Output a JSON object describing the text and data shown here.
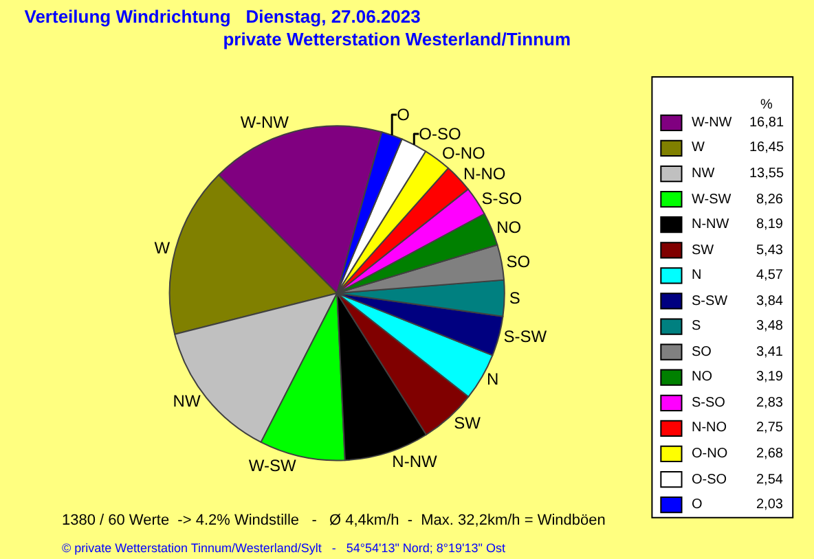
{
  "chart_data": {
    "type": "pie",
    "title": "Verteilung Windrichtung   Dienstag, 27.06.2023",
    "subtitle": "private Wetterstation Westerland/Tinnum",
    "legend_title": "%",
    "legend": "right",
    "categories": [
      "W-NW",
      "W",
      "NW",
      "W-SW",
      "N-NW",
      "SW",
      "N",
      "S-SW",
      "S",
      "SO",
      "NO",
      "S-SO",
      "N-NO",
      "O-NO",
      "O-SO",
      "O"
    ],
    "values": [
      16.81,
      16.45,
      13.55,
      8.26,
      8.19,
      5.43,
      4.57,
      3.84,
      3.48,
      3.41,
      3.19,
      2.83,
      2.75,
      2.68,
      2.54,
      2.03
    ],
    "value_labels": [
      "16,81",
      "16,45",
      "13,55",
      "8,26",
      "8,19",
      "5,43",
      "4,57",
      "3,84",
      "3,48",
      "3,41",
      "3,19",
      "2,83",
      "2,75",
      "2,68",
      "2,54",
      "2,03"
    ],
    "colors": [
      "#800080",
      "#808000",
      "#c0c0c0",
      "#00ff00",
      "#000000",
      "#800000",
      "#00ffff",
      "#000080",
      "#008080",
      "#808080",
      "#008000",
      "#ff00ff",
      "#ff0000",
      "#ffff00",
      "#ffffff",
      "#0000ff"
    ],
    "annotations": [
      "1380 / 60 Werte  -> 4.2% Windstille   -   Ø 4,4km/h  -  Max. 32,2km/h = Windböen",
      "© private Wetterstation Tinnum/Westerland/Sylt   -   54°54'13\" Nord; 8°19'13\" Ost"
    ]
  }
}
